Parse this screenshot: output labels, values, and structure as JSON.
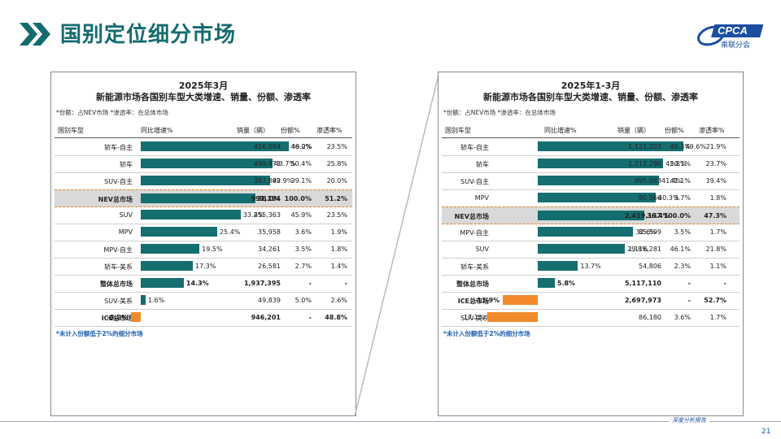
{
  "page": {
    "title": "国别定位细分市场",
    "logo_text": "CPCA",
    "logo_subtext": "乘联分会",
    "footer_text": "深度分析报告",
    "page_number": "21",
    "colors": {
      "bar": "#156e70",
      "bar_negative": "#f08a2d",
      "highlight": "#d9d9d9",
      "title": "#136b6f"
    }
  },
  "panels": [
    {
      "title_line1": "2025年3月",
      "title_line2": "新能源市场各国别车型大类增速、销量、份额、渗透率",
      "note": "*份额：占NEV市场   *渗透率：在总体市场",
      "footnote": "*未计入份额低于2%的细分市场",
      "headers": {
        "segment": "国别车型",
        "growth": "同比增速%",
        "volume": "销量（辆）",
        "share": "份额%",
        "penetration": "渗透率%"
      }
    },
    {
      "title_line1": "2025年1-3月",
      "title_line2": "新能源市场各国别车型大类增速、销量、份额、渗透率",
      "note": "*份额：占NEV市场   *渗透率：在总体市场",
      "footnote": "*未计入份额低于2%的细分市场",
      "headers": {
        "segment": "国别车型",
        "growth": "同比增速%",
        "volume": "销量（辆）",
        "share": "份额%",
        "penetration": "渗透率%"
      }
    }
  ],
  "chart_data": [
    {
      "type": "bar",
      "title": "2025年3月 新能源市场各国别车型大类增速、销量、份额、渗透率",
      "xlabel": "同比增速%",
      "categories": [
        "轿车-自主",
        "轿车",
        "SUV-自主",
        "NEV总市场",
        "SUV",
        "MPV",
        "MPV-自主",
        "轿车-美系",
        "整体总市场",
        "SUV-美系",
        "ICE总市场"
      ],
      "rows": [
        {
          "segment": "轿车-自主",
          "growth": 49.2,
          "growth_label": "49.2%",
          "volume": "456,094",
          "share": "46.0%",
          "penetration": "23.5%"
        },
        {
          "segment": "轿车",
          "growth": 43.7,
          "growth_label": "43.7%",
          "volume": "499,873",
          "share": "50.4%",
          "penetration": "25.8%"
        },
        {
          "segment": "SUV-自主",
          "growth": 42.9,
          "growth_label": "42.9%",
          "volume": "387,899",
          "share": "39.1%",
          "penetration": "20.0%"
        },
        {
          "segment": "NEV总市场",
          "growth": 38.0,
          "growth_label": "38.0%",
          "volume": "991,194",
          "share": "100.0%",
          "penetration": "51.2%",
          "highlight": true,
          "bold": true
        },
        {
          "segment": "SUV",
          "growth": 33.2,
          "growth_label": "33.2%",
          "volume": "455,363",
          "share": "45.9%",
          "penetration": "23.5%"
        },
        {
          "segment": "MPV",
          "growth": 25.4,
          "growth_label": "25.4%",
          "volume": "35,958",
          "share": "3.6%",
          "penetration": "1.9%"
        },
        {
          "segment": "MPV-自主",
          "growth": 19.5,
          "growth_label": "19.5%",
          "volume": "34,261",
          "share": "3.5%",
          "penetration": "1.8%"
        },
        {
          "segment": "轿车-美系",
          "growth": 17.3,
          "growth_label": "17.3%",
          "volume": "26,581",
          "share": "2.7%",
          "penetration": "1.4%"
        },
        {
          "segment": "整体总市场",
          "growth": 14.3,
          "growth_label": "14.3%",
          "volume": "1,937,395",
          "share": "-",
          "penetration": "-",
          "bold": true
        },
        {
          "segment": "SUV-美系",
          "growth": 1.6,
          "growth_label": "1.6%",
          "volume": "49,839",
          "share": "5.0%",
          "penetration": "2.6%"
        },
        {
          "segment": "ICE总市场",
          "growth": -3.2,
          "growth_label": "-3.2%",
          "volume": "946,201",
          "share": "-",
          "penetration": "48.8%",
          "bold": true
        }
      ]
    },
    {
      "type": "bar",
      "title": "2025年1-3月 新能源市场各国别车型大类增速、销量、份额、渗透率",
      "xlabel": "同比增速%",
      "categories": [
        "轿车-自主",
        "轿车",
        "SUV-自主",
        "MPV",
        "NEV总市场",
        "MPV-自主",
        "SUV",
        "轿车-美系",
        "整体总市场",
        "ICE总市场",
        "SUV-美系"
      ],
      "rows": [
        {
          "segment": "轿车-自主",
          "growth": 49.6,
          "growth_label": "49.6%",
          "volume": "1,121,203",
          "share": "46.3%",
          "penetration": "21.9%"
        },
        {
          "segment": "轿车",
          "growth": 42.8,
          "growth_label": "42.8%",
          "volume": "1,212,290",
          "share": "50.1%",
          "penetration": "23.7%"
        },
        {
          "segment": "SUV-自主",
          "growth": 41.4,
          "growth_label": "41.4%",
          "volume": "995,093",
          "share": "41.1%",
          "penetration": "19.4%"
        },
        {
          "segment": "MPV",
          "growth": 40.3,
          "growth_label": "40.3%",
          "volume": "90,566",
          "share": "3.7%",
          "penetration": "1.8%"
        },
        {
          "segment": "NEV总市场",
          "growth": 36.4,
          "growth_label": "36.4%",
          "volume": "2,419,137",
          "share": "100.0%",
          "penetration": "47.3%",
          "highlight": true,
          "bold": true
        },
        {
          "segment": "MPV-自主",
          "growth": 32.6,
          "growth_label": "32.6%",
          "volume": "85,599",
          "share": "3.5%",
          "penetration": "1.7%"
        },
        {
          "segment": "SUV",
          "growth": 29.8,
          "growth_label": "29.8%",
          "volume": "1,116,281",
          "share": "46.1%",
          "penetration": "21.8%"
        },
        {
          "segment": "轿车-美系",
          "growth": 13.7,
          "growth_label": "13.7%",
          "volume": "54,806",
          "share": "2.3%",
          "penetration": "1.1%"
        },
        {
          "segment": "整体总市场",
          "growth": 5.8,
          "growth_label": "5.8%",
          "volume": "5,117,110",
          "share": "-",
          "penetration": "-",
          "bold": true
        },
        {
          "segment": "ICE总市场",
          "growth": -11.9,
          "growth_label": "-11.9%",
          "volume": "2,697,973",
          "share": "-",
          "penetration": "52.7%",
          "bold": true
        },
        {
          "segment": "SUV-美系",
          "growth": -17.1,
          "growth_label": "-17.1%",
          "volume": "86,180",
          "share": "3.6%",
          "penetration": "1.7%"
        }
      ]
    }
  ]
}
